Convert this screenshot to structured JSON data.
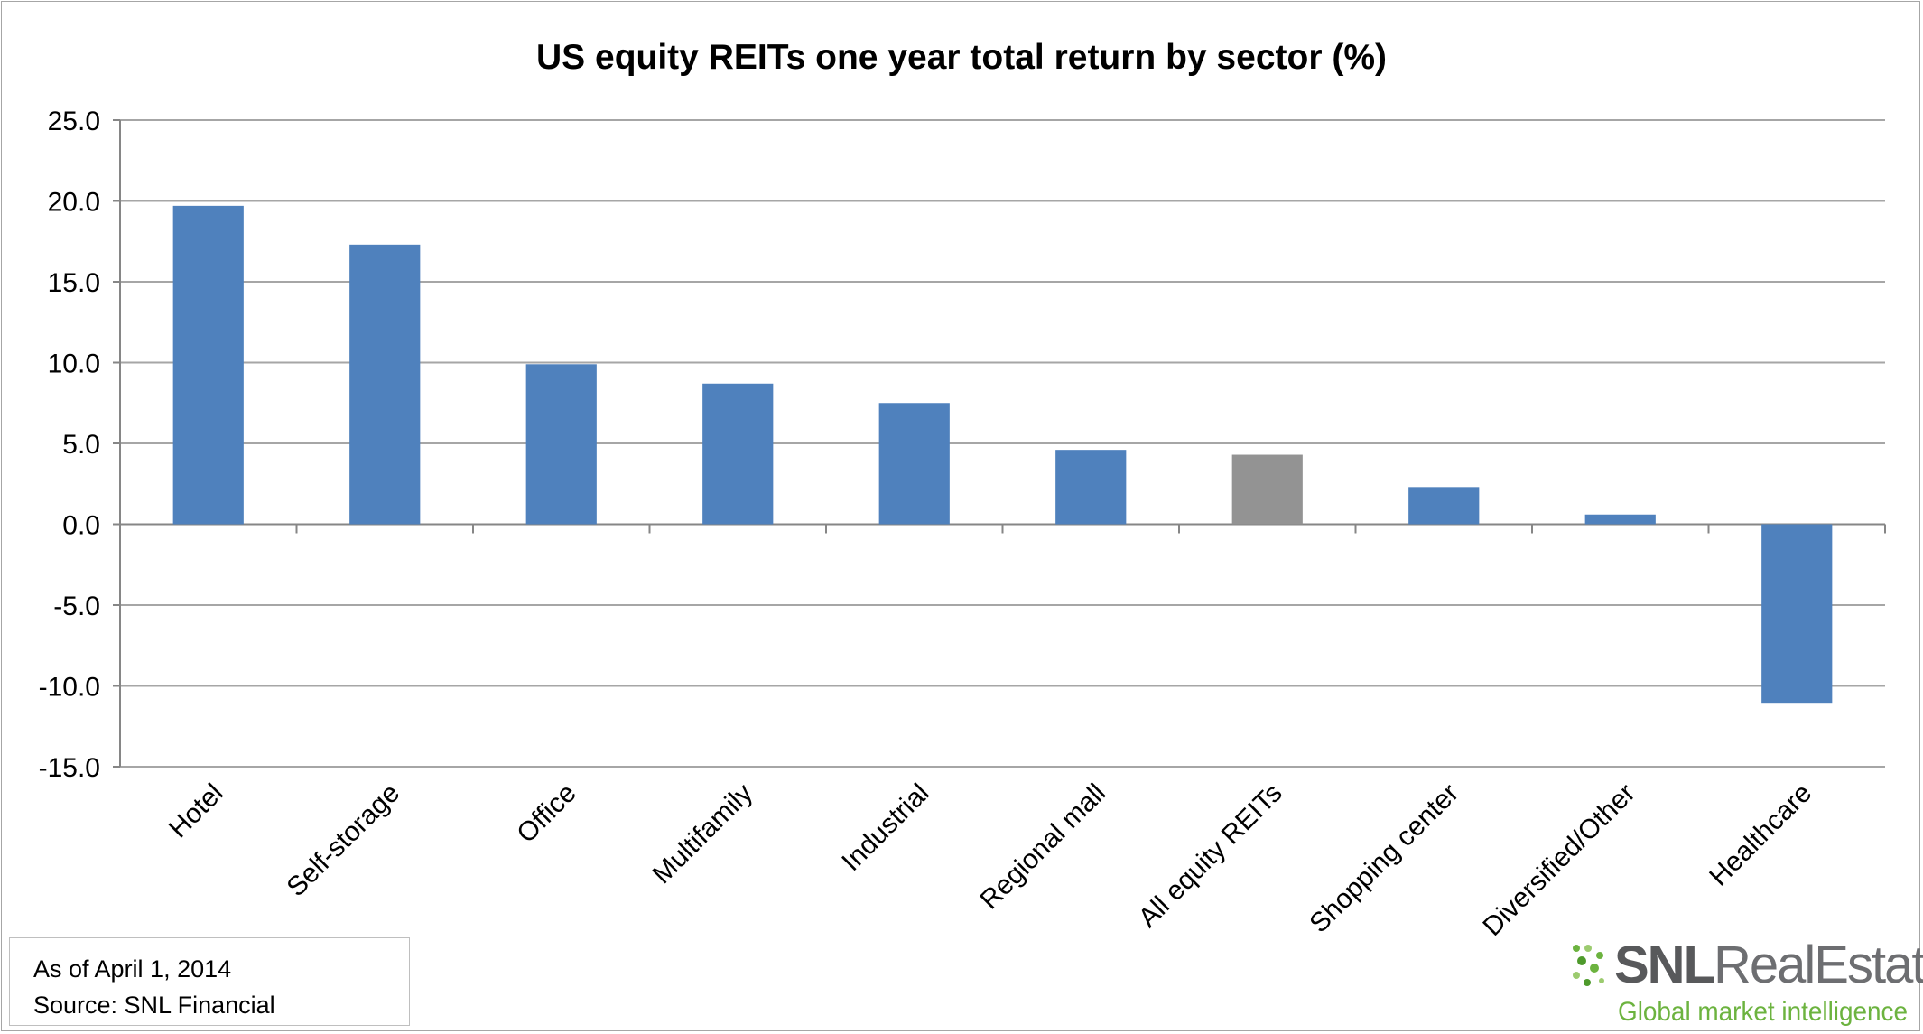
{
  "chart_data": {
    "type": "bar",
    "title": "US equity REITs one year total return by sector (%)",
    "xlabel": "",
    "ylabel": "",
    "ylim": [
      -15,
      25
    ],
    "yticks": [
      25,
      20,
      15,
      10,
      5,
      0,
      -5,
      -10,
      -15
    ],
    "ytick_labels": [
      "25.0",
      "20.0",
      "15.0",
      "10.0",
      "5.0",
      "0.0",
      "-5.0",
      "-10.0",
      "-15.0"
    ],
    "grid": true,
    "legend": "none",
    "categories": [
      "Hotel",
      "Self-storage",
      "Office",
      "Multifamily",
      "Industrial",
      "Regional mall",
      "All equity REITs",
      "Shopping center",
      "Diversified/Other",
      "Healthcare"
    ],
    "values": [
      19.7,
      17.3,
      9.9,
      8.7,
      7.5,
      4.6,
      4.3,
      2.3,
      0.6,
      -11.1
    ],
    "bar_colors": [
      "#4f81bd",
      "#4f81bd",
      "#4f81bd",
      "#4f81bd",
      "#4f81bd",
      "#4f81bd",
      "#939393",
      "#4f81bd",
      "#4f81bd",
      "#4f81bd"
    ]
  },
  "notes": {
    "as_of": "As of April 1, 2014",
    "source": "Source: SNL Financial"
  },
  "logo": {
    "snl": "SNL",
    "real_estate": "RealEstate",
    "tagline": "Global market intelligence",
    "accent_color": "#6cb33f"
  }
}
